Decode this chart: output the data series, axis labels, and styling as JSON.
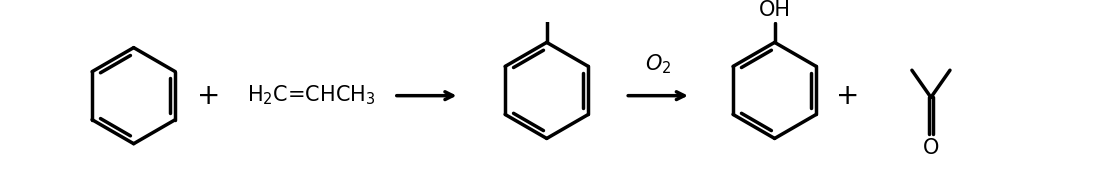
{
  "bg_color": "#ffffff",
  "line_color": "#000000",
  "line_width": 2.5,
  "figsize": [
    11.17,
    1.76
  ],
  "dpi": 100,
  "fig_w": 1117,
  "fig_h": 176,
  "o2_text": "O$_2$",
  "propylene_text": "H$_2$C=CHCH$_3$"
}
